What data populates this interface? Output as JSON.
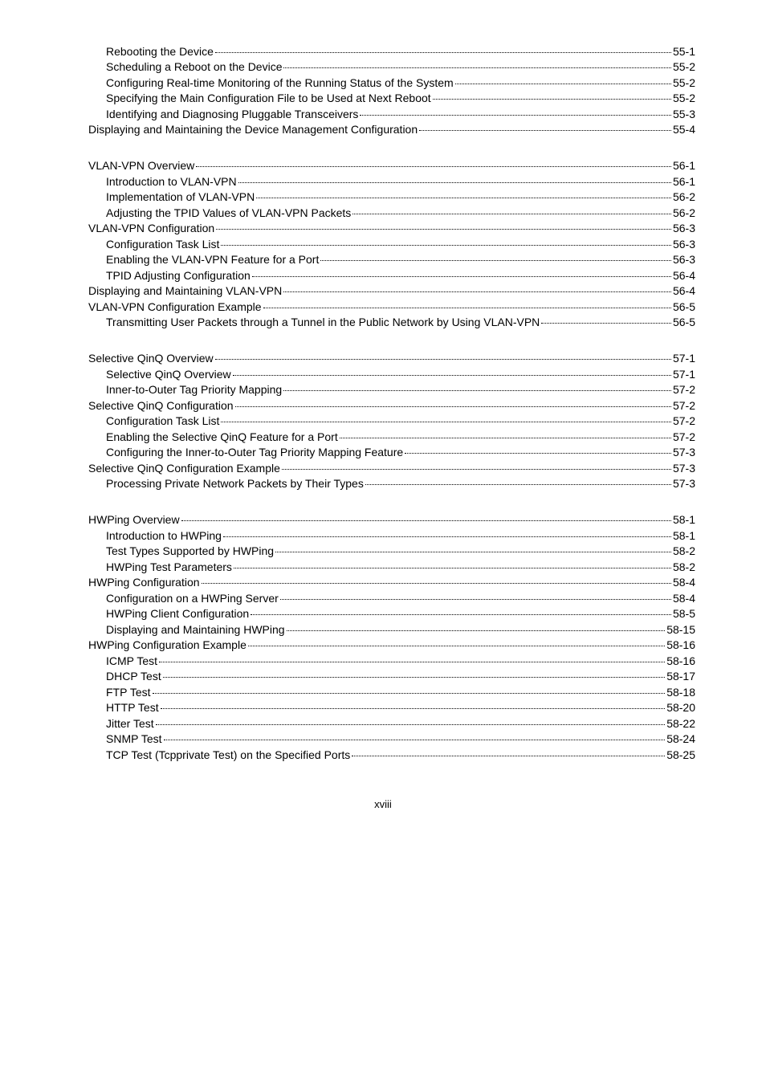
{
  "footer": "xviii",
  "sections": [
    {
      "entries": [
        {
          "indent": 2,
          "title": "Rebooting the Device",
          "page": "55-1"
        },
        {
          "indent": 2,
          "title": "Scheduling a Reboot on the Device",
          "page": "55-2"
        },
        {
          "indent": 2,
          "title": "Configuring Real-time Monitoring of the Running Status of the System",
          "page": "55-2"
        },
        {
          "indent": 2,
          "title": "Specifying the Main Configuration File to be Used at Next Reboot",
          "page": "55-2"
        },
        {
          "indent": 2,
          "title": "Identifying and Diagnosing Pluggable Transceivers",
          "page": "55-3"
        },
        {
          "indent": 1,
          "title": "Displaying and Maintaining the Device Management Configuration",
          "page": "55-4"
        }
      ]
    },
    {
      "entries": [
        {
          "indent": 1,
          "title": "VLAN-VPN Overview",
          "page": "56-1"
        },
        {
          "indent": 2,
          "title": "Introduction to VLAN-VPN",
          "page": "56-1"
        },
        {
          "indent": 2,
          "title": "Implementation of VLAN-VPN",
          "page": "56-2"
        },
        {
          "indent": 2,
          "title": "Adjusting the TPID Values of VLAN-VPN Packets",
          "page": "56-2"
        },
        {
          "indent": 1,
          "title": "VLAN-VPN Configuration",
          "page": "56-3"
        },
        {
          "indent": 2,
          "title": "Configuration Task List",
          "page": "56-3"
        },
        {
          "indent": 2,
          "title": "Enabling the VLAN-VPN Feature for a Port",
          "page": "56-3"
        },
        {
          "indent": 2,
          "title": "TPID Adjusting Configuration",
          "page": "56-4"
        },
        {
          "indent": 1,
          "title": "Displaying and Maintaining VLAN-VPN",
          "page": "56-4"
        },
        {
          "indent": 1,
          "title": "VLAN-VPN Configuration Example",
          "page": "56-5"
        },
        {
          "indent": 2,
          "title": "Transmitting User Packets through a Tunnel in the Public Network by Using VLAN-VPN",
          "page": "56-5"
        }
      ]
    },
    {
      "entries": [
        {
          "indent": 1,
          "title": "Selective QinQ Overview",
          "page": "57-1"
        },
        {
          "indent": 2,
          "title": "Selective QinQ Overview",
          "page": "57-1"
        },
        {
          "indent": 2,
          "title": "Inner-to-Outer Tag Priority Mapping",
          "page": "57-2"
        },
        {
          "indent": 1,
          "title": "Selective QinQ Configuration",
          "page": "57-2"
        },
        {
          "indent": 2,
          "title": "Configuration Task List",
          "page": "57-2"
        },
        {
          "indent": 2,
          "title": "Enabling the Selective QinQ Feature for a Port",
          "page": "57-2"
        },
        {
          "indent": 2,
          "title": "Configuring the Inner-to-Outer Tag Priority Mapping Feature",
          "page": "57-3"
        },
        {
          "indent": 1,
          "title": "Selective QinQ Configuration Example",
          "page": "57-3"
        },
        {
          "indent": 2,
          "title": "Processing Private Network Packets by Their Types",
          "page": "57-3"
        }
      ]
    },
    {
      "entries": [
        {
          "indent": 1,
          "title": "HWPing Overview",
          "page": "58-1"
        },
        {
          "indent": 2,
          "title": "Introduction to HWPing",
          "page": "58-1"
        },
        {
          "indent": 2,
          "title": "Test Types Supported by HWPing",
          "page": "58-2"
        },
        {
          "indent": 2,
          "title": "HWPing Test Parameters",
          "page": "58-2"
        },
        {
          "indent": 1,
          "title": "HWPing Configuration",
          "page": "58-4"
        },
        {
          "indent": 2,
          "title": "Configuration on a HWPing Server",
          "page": "58-4"
        },
        {
          "indent": 2,
          "title": "HWPing Client Configuration",
          "page": "58-5"
        },
        {
          "indent": 2,
          "title": "Displaying and Maintaining HWPing",
          "page": "58-15"
        },
        {
          "indent": 1,
          "title": "HWPing Configuration Example",
          "page": "58-16"
        },
        {
          "indent": 2,
          "title": "ICMP Test",
          "page": "58-16"
        },
        {
          "indent": 2,
          "title": "DHCP Test",
          "page": "58-17"
        },
        {
          "indent": 2,
          "title": "FTP Test",
          "page": "58-18"
        },
        {
          "indent": 2,
          "title": "HTTP Test",
          "page": "58-20"
        },
        {
          "indent": 2,
          "title": "Jitter Test",
          "page": "58-22"
        },
        {
          "indent": 2,
          "title": "SNMP Test",
          "page": "58-24"
        },
        {
          "indent": 2,
          "title": "TCP Test (Tcpprivate Test) on the Specified Ports",
          "page": "58-25"
        }
      ]
    }
  ]
}
